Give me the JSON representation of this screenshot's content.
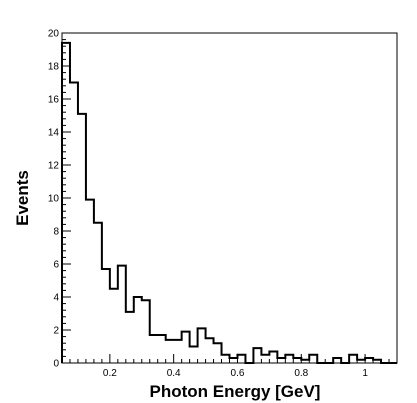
{
  "chart_data": {
    "type": "histogram",
    "title": "",
    "xlabel": "Photon Energy [GeV]",
    "ylabel": "Events",
    "xlim": [
      0.05,
      1.1
    ],
    "ylim": [
      0,
      20
    ],
    "bin_width": 0.025,
    "x_ticks": [
      0.2,
      0.4,
      0.6,
      0.8,
      1.0
    ],
    "x_tick_labels": [
      "0.2",
      "0.4",
      "0.6",
      "0.8",
      "1"
    ],
    "y_ticks": [
      0,
      2,
      4,
      6,
      8,
      10,
      12,
      14,
      16,
      18,
      20
    ],
    "y_tick_labels": [
      "0",
      "2",
      "4",
      "6",
      "8",
      "10",
      "12",
      "14",
      "16",
      "18",
      "20"
    ],
    "grid": false,
    "legend": "none",
    "series": [
      {
        "bin_edges": [
          0.05,
          0.075,
          0.1,
          0.125,
          0.15,
          0.175,
          0.2,
          0.225,
          0.25,
          0.275,
          0.3,
          0.325,
          0.35,
          0.375,
          0.4,
          0.425,
          0.45,
          0.475,
          0.5,
          0.525,
          0.55,
          0.575,
          0.6,
          0.625,
          0.65,
          0.675,
          0.7,
          0.725,
          0.75,
          0.775,
          0.8,
          0.825,
          0.85,
          0.875,
          0.9,
          0.925,
          0.95,
          0.975,
          1.0,
          1.025,
          1.05,
          1.075,
          1.1
        ],
        "counts": [
          19.4,
          17.0,
          15.1,
          9.9,
          8.5,
          5.7,
          4.5,
          5.9,
          3.1,
          4.0,
          3.8,
          1.7,
          1.7,
          1.4,
          1.4,
          1.9,
          1.0,
          2.1,
          1.5,
          1.2,
          0.5,
          0.3,
          0.5,
          0.0,
          0.9,
          0.5,
          0.7,
          0.3,
          0.5,
          0.3,
          0.2,
          0.5,
          0.0,
          0.0,
          0.3,
          0.0,
          0.5,
          0.2,
          0.3,
          0.2,
          0.0,
          0.0
        ],
        "line_color": "#000000"
      }
    ]
  }
}
